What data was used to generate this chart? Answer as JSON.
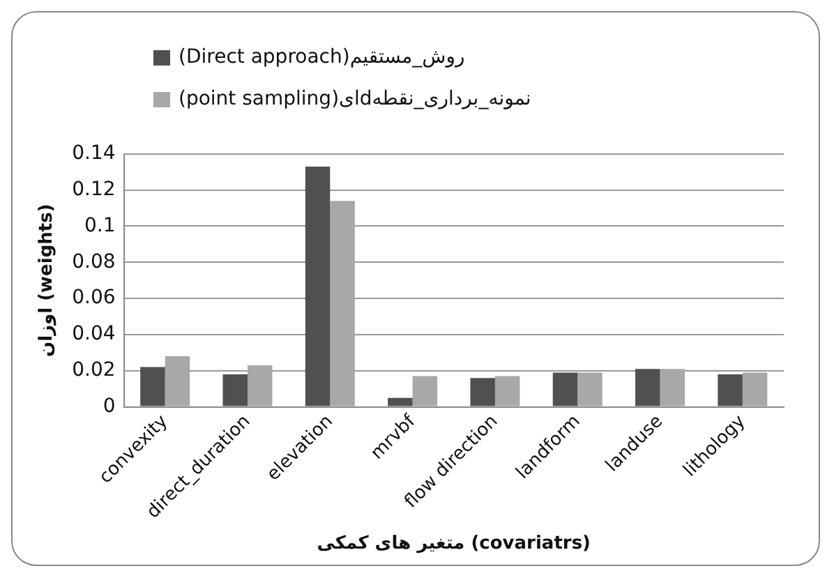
{
  "chart_data": {
    "type": "bar",
    "xlabel": "متغیر های کمکی (covariatrs)",
    "ylabel": "اوزان (weights)",
    "categories": [
      "convexity",
      "direct_duration",
      "elevation",
      "mrvbf",
      "flow direction",
      "landform",
      "landuse",
      "lithology"
    ],
    "series": [
      {
        "name": "روش_مستقیم(Direct approach)",
        "color": "#505050",
        "values": [
          0.022,
          0.018,
          0.133,
          0.005,
          0.016,
          0.019,
          0.021,
          0.018
        ]
      },
      {
        "name": "نمونه_برداری_نقطهdای(point sampling)",
        "color": "#a8a8a8",
        "values": [
          0.028,
          0.023,
          0.114,
          0.017,
          0.017,
          0.019,
          0.021,
          0.019
        ]
      }
    ],
    "ylim": [
      0,
      0.14
    ],
    "yticks": [
      0,
      0.02,
      0.04,
      0.06,
      0.08,
      0.1,
      0.12,
      0.14
    ],
    "grid": "y",
    "legend": "top"
  }
}
